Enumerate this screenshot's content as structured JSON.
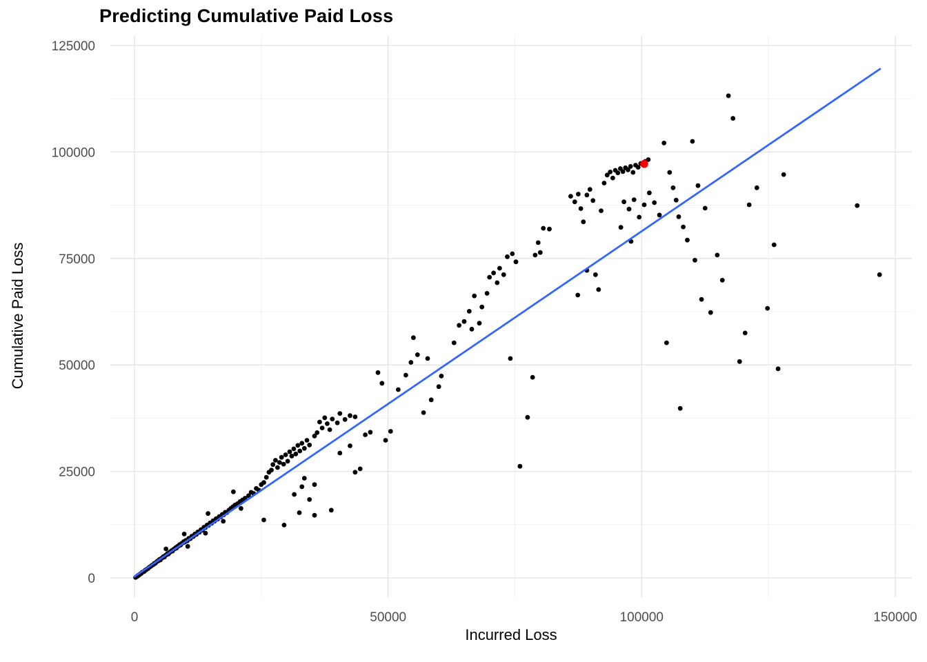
{
  "title": "Predicting Cumulative Paid Loss",
  "x_axis": {
    "label": "Incurred Loss",
    "ticks": [
      {
        "value": 0,
        "label": "0"
      },
      {
        "value": 50000,
        "label": "50000"
      },
      {
        "value": 100000,
        "label": "100000"
      },
      {
        "value": 150000,
        "label": "150000"
      }
    ],
    "minor_ticks": [
      25000,
      75000,
      125000
    ],
    "range": [
      0,
      150000
    ]
  },
  "y_axis": {
    "label": "Cumulative Paid Loss",
    "ticks": [
      {
        "value": 0,
        "label": "0"
      },
      {
        "value": 25000,
        "label": "25000"
      },
      {
        "value": 50000,
        "label": "50000"
      },
      {
        "value": 75000,
        "label": "75000"
      },
      {
        "value": 100000,
        "label": "100000"
      },
      {
        "value": 125000,
        "label": "125000"
      }
    ],
    "minor_ticks": [
      12500,
      37500,
      62500,
      87500,
      112500
    ],
    "range": [
      0,
      125000
    ]
  },
  "colors": {
    "background": "#FFFFFF",
    "grid_major": "#E3E3E3",
    "grid_minor": "#F0F0F0",
    "tick_label": "#4D4D4D",
    "axis_title": "#000000",
    "title": "#000000",
    "point": "#000000",
    "highlight_point": "#FF0000",
    "trend_line": "#3366FF"
  },
  "chart_data": {
    "type": "scatter",
    "title": "Predicting Cumulative Paid Loss",
    "xlabel": "Incurred Loss",
    "ylabel": "Cumulative Paid Loss",
    "xlim": [
      0,
      150000
    ],
    "ylim": [
      0,
      125000
    ],
    "grid": true,
    "legend": false,
    "series": [
      {
        "name": "observations",
        "color": "#000000",
        "marker_size": 3.4,
        "points": [
          [
            200,
            100
          ],
          [
            300,
            200
          ],
          [
            500,
            300
          ],
          [
            600,
            500
          ],
          [
            800,
            600
          ],
          [
            900,
            700
          ],
          [
            1100,
            900
          ],
          [
            1300,
            1000
          ],
          [
            1500,
            1300
          ],
          [
            1700,
            1400
          ],
          [
            1900,
            1500
          ],
          [
            2100,
            1800
          ],
          [
            2300,
            1900
          ],
          [
            2500,
            2100
          ],
          [
            2700,
            2200
          ],
          [
            2900,
            2500
          ],
          [
            3100,
            2600
          ],
          [
            3300,
            2800
          ],
          [
            3500,
            3000
          ],
          [
            3700,
            3100
          ],
          [
            3900,
            3400
          ],
          [
            4100,
            3400
          ],
          [
            4300,
            3700
          ],
          [
            4500,
            3900
          ],
          [
            4700,
            4000
          ],
          [
            4900,
            4300
          ],
          [
            5100,
            4200
          ],
          [
            5300,
            4600
          ],
          [
            5500,
            4700
          ],
          [
            5700,
            5000
          ],
          [
            5900,
            4900
          ],
          [
            6100,
            5300
          ],
          [
            6300,
            5400
          ],
          [
            6500,
            5700
          ],
          [
            6700,
            5600
          ],
          [
            6900,
            6000
          ],
          [
            7100,
            6100
          ],
          [
            7300,
            6400
          ],
          [
            7500,
            6300
          ],
          [
            7700,
            6700
          ],
          [
            7900,
            6800
          ],
          [
            8100,
            7100
          ],
          [
            8300,
            7000
          ],
          [
            8500,
            7400
          ],
          [
            8700,
            7500
          ],
          [
            8900,
            7800
          ],
          [
            9100,
            7700
          ],
          [
            9300,
            8100
          ],
          [
            9500,
            8200
          ],
          [
            9700,
            8500
          ],
          [
            9900,
            8400
          ],
          [
            10100,
            8800
          ],
          [
            10400,
            8700
          ],
          [
            10700,
            9300
          ],
          [
            11000,
            9200
          ],
          [
            11300,
            9800
          ],
          [
            11600,
            9700
          ],
          [
            11900,
            10300
          ],
          [
            12200,
            10200
          ],
          [
            12500,
            10800
          ],
          [
            12800,
            10700
          ],
          [
            13100,
            11300
          ],
          [
            13400,
            11200
          ],
          [
            13700,
            11900
          ],
          [
            14000,
            11800
          ],
          [
            14300,
            12400
          ],
          [
            14600,
            12300
          ],
          [
            14900,
            12900
          ],
          [
            15200,
            12800
          ],
          [
            15500,
            13400
          ],
          [
            15800,
            13300
          ],
          [
            16100,
            13900
          ],
          [
            16400,
            13800
          ],
          [
            16700,
            14400
          ],
          [
            17000,
            14300
          ],
          [
            17300,
            14900
          ],
          [
            17600,
            14800
          ],
          [
            17900,
            15400
          ],
          [
            18200,
            15300
          ],
          [
            18600,
            15900
          ],
          [
            19000,
            16300
          ],
          [
            19400,
            16700
          ],
          [
            19800,
            17100
          ],
          [
            20300,
            17400
          ],
          [
            20800,
            17900
          ],
          [
            21300,
            18300
          ],
          [
            21800,
            18700
          ],
          [
            6200,
            6800
          ],
          [
            9800,
            10300
          ],
          [
            14500,
            15100
          ],
          [
            19500,
            20200
          ],
          [
            10500,
            7400
          ],
          [
            14000,
            10500
          ],
          [
            17500,
            13300
          ],
          [
            21000,
            16300
          ],
          [
            22500,
            19300
          ],
          [
            23000,
            20100
          ],
          [
            23500,
            19800
          ],
          [
            24000,
            21000
          ],
          [
            24500,
            20600
          ],
          [
            25000,
            21900
          ],
          [
            25500,
            22400
          ],
          [
            26000,
            23600
          ],
          [
            26500,
            24800
          ],
          [
            27000,
            25300
          ],
          [
            27300,
            26600
          ],
          [
            27800,
            27600
          ],
          [
            28200,
            25900
          ],
          [
            28600,
            27100
          ],
          [
            29000,
            28300
          ],
          [
            29400,
            26700
          ],
          [
            29800,
            28900
          ],
          [
            30200,
            27400
          ],
          [
            30600,
            29600
          ],
          [
            31000,
            28600
          ],
          [
            31400,
            30300
          ],
          [
            31800,
            29100
          ],
          [
            32200,
            31100
          ],
          [
            32600,
            29800
          ],
          [
            33000,
            31600
          ],
          [
            33500,
            30400
          ],
          [
            34000,
            32300
          ],
          [
            34500,
            31200
          ],
          [
            25500,
            13600
          ],
          [
            29500,
            12400
          ],
          [
            32500,
            15300
          ],
          [
            35500,
            14700
          ],
          [
            31500,
            19600
          ],
          [
            33000,
            21400
          ],
          [
            34500,
            18400
          ],
          [
            35500,
            21900
          ],
          [
            33500,
            23400
          ],
          [
            35500,
            33300
          ],
          [
            36000,
            34100
          ],
          [
            36500,
            36600
          ],
          [
            37000,
            35200
          ],
          [
            37500,
            37600
          ],
          [
            38000,
            36200
          ],
          [
            38500,
            34800
          ],
          [
            39000,
            37300
          ],
          [
            40000,
            36400
          ],
          [
            40500,
            38600
          ],
          [
            41500,
            37200
          ],
          [
            42500,
            38100
          ],
          [
            43500,
            37800
          ],
          [
            43500,
            24800
          ],
          [
            44500,
            25600
          ],
          [
            45500,
            33600
          ],
          [
            46500,
            34200
          ],
          [
            40500,
            29300
          ],
          [
            42500,
            31000
          ],
          [
            38800,
            15900
          ],
          [
            48000,
            48200
          ],
          [
            48800,
            45700
          ],
          [
            49500,
            32300
          ],
          [
            50500,
            34400
          ],
          [
            52000,
            44200
          ],
          [
            53500,
            47600
          ],
          [
            54500,
            50600
          ],
          [
            55000,
            56400
          ],
          [
            55800,
            52400
          ],
          [
            57000,
            38800
          ],
          [
            58500,
            41800
          ],
          [
            60000,
            44900
          ],
          [
            57800,
            51500
          ],
          [
            60500,
            47400
          ],
          [
            63000,
            55200
          ],
          [
            64000,
            59300
          ],
          [
            65000,
            60200
          ],
          [
            66000,
            62600
          ],
          [
            66500,
            58400
          ],
          [
            67000,
            66200
          ],
          [
            68000,
            59800
          ],
          [
            68500,
            63600
          ],
          [
            69500,
            66800
          ],
          [
            70000,
            70600
          ],
          [
            70800,
            71600
          ],
          [
            71500,
            69300
          ],
          [
            72000,
            72700
          ],
          [
            72800,
            71200
          ],
          [
            73500,
            75400
          ],
          [
            74500,
            76100
          ],
          [
            75200,
            74200
          ],
          [
            76000,
            26200
          ],
          [
            77500,
            37700
          ],
          [
            78500,
            47100
          ],
          [
            79000,
            75800
          ],
          [
            80000,
            76400
          ],
          [
            80600,
            82100
          ],
          [
            81800,
            81900
          ],
          [
            74100,
            51500
          ],
          [
            79600,
            78700
          ],
          [
            86000,
            89600
          ],
          [
            86800,
            88300
          ],
          [
            87500,
            90100
          ],
          [
            88000,
            86700
          ],
          [
            88500,
            83600
          ],
          [
            89200,
            89900
          ],
          [
            89800,
            91200
          ],
          [
            90400,
            88600
          ],
          [
            90900,
            71200
          ],
          [
            91500,
            67700
          ],
          [
            92000,
            86200
          ],
          [
            92600,
            92700
          ],
          [
            93200,
            94600
          ],
          [
            93800,
            95300
          ],
          [
            94300,
            93900
          ],
          [
            94800,
            95700
          ],
          [
            95300,
            95100
          ],
          [
            95800,
            96100
          ],
          [
            96300,
            95400
          ],
          [
            96800,
            96300
          ],
          [
            97300,
            95800
          ],
          [
            97800,
            96600
          ],
          [
            98300,
            95200
          ],
          [
            98800,
            96900
          ],
          [
            99300,
            96400
          ],
          [
            99800,
            97300
          ],
          [
            100700,
            97800
          ],
          [
            101300,
            98200
          ],
          [
            87400,
            66400
          ],
          [
            89200,
            72200
          ],
          [
            95900,
            82300
          ],
          [
            96500,
            88300
          ],
          [
            97500,
            86600
          ],
          [
            98500,
            88800
          ],
          [
            99500,
            84700
          ],
          [
            100500,
            87600
          ],
          [
            101500,
            90400
          ],
          [
            102500,
            88100
          ],
          [
            103500,
            85200
          ],
          [
            104400,
            102100
          ],
          [
            104900,
            55200
          ],
          [
            105500,
            95200
          ],
          [
            106200,
            91600
          ],
          [
            106800,
            88700
          ],
          [
            107300,
            84800
          ],
          [
            107600,
            39800
          ],
          [
            108200,
            82400
          ],
          [
            109000,
            79300
          ],
          [
            110000,
            102500
          ],
          [
            110500,
            74600
          ],
          [
            111100,
            92100
          ],
          [
            111800,
            65400
          ],
          [
            112500,
            86800
          ],
          [
            97900,
            79000
          ],
          [
            113600,
            62300
          ],
          [
            114900,
            75800
          ],
          [
            115900,
            69900
          ],
          [
            117100,
            113200
          ],
          [
            118000,
            107900
          ],
          [
            119300,
            50800
          ],
          [
            120400,
            57500
          ],
          [
            121200,
            87600
          ],
          [
            122700,
            91600
          ],
          [
            124800,
            63300
          ],
          [
            126100,
            78200
          ],
          [
            126900,
            49100
          ],
          [
            128000,
            94700
          ],
          [
            142500,
            87400
          ],
          [
            146900,
            71200
          ]
        ]
      },
      {
        "name": "highlighted-prediction",
        "color": "#FF0000",
        "marker_size": 5.8,
        "points": [
          [
            100500,
            97200
          ]
        ]
      }
    ],
    "trend_line": {
      "color": "#3366FF",
      "width": 2.8,
      "points": [
        [
          0,
          300
        ],
        [
          147000,
          119500
        ]
      ]
    }
  }
}
